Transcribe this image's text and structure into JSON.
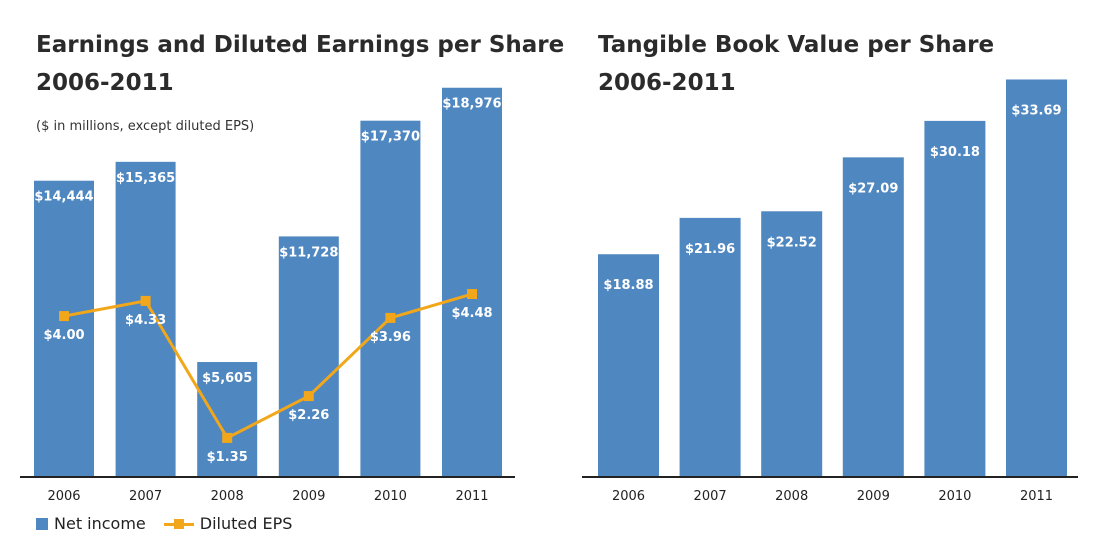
{
  "colors": {
    "bar": "#4f87c0",
    "line": "#f2a71b",
    "text_on_bar": "#ffffff",
    "axis": "#222222"
  },
  "chart_data": [
    {
      "type": "bar",
      "title": "Earnings and Diluted Earnings per Share",
      "title_line2": "2006-2011",
      "subtitle": "($ in millions, except diluted EPS)",
      "categories": [
        "2006",
        "2007",
        "2008",
        "2009",
        "2010",
        "2011"
      ],
      "series": [
        {
          "name": "Net income",
          "type": "bar",
          "values": [
            14444,
            15365,
            5605,
            11728,
            17370,
            18976
          ],
          "labels": [
            "$14,444",
            "$15,365",
            "$5,605",
            "$11,728",
            "$17,370",
            "$18,976"
          ]
        },
        {
          "name": "Diluted EPS",
          "type": "line",
          "values": [
            4.0,
            4.33,
            1.35,
            2.26,
            3.96,
            4.48
          ],
          "labels": [
            "$4.00",
            "$4.33",
            "$1.35",
            "$2.26",
            "$3.96",
            "$4.48"
          ]
        }
      ],
      "ylim": [
        0,
        19500
      ],
      "ylim_secondary": [
        0.5,
        9.2
      ],
      "grid": false,
      "legend": "bottom-left"
    },
    {
      "type": "bar",
      "title": "Tangible Book Value per Share",
      "title_line2": "2006-2011",
      "categories": [
        "2006",
        "2007",
        "2008",
        "2009",
        "2010",
        "2011"
      ],
      "values": [
        18.88,
        21.96,
        22.52,
        27.09,
        30.18,
        33.69
      ],
      "labels": [
        "$18.88",
        "$21.96",
        "$22.52",
        "$27.09",
        "$30.18",
        "$33.69"
      ],
      "ylim": [
        0,
        33.9
      ],
      "grid": false
    }
  ]
}
